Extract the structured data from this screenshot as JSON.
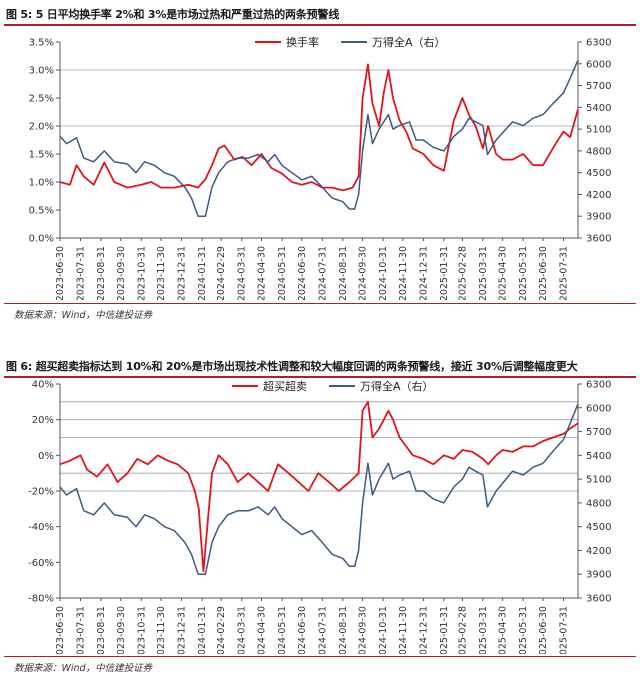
{
  "figures": [
    {
      "title": "图 5: 5 日平均换手率 2%和 3%是市场过热和严重过热的两条预警线",
      "source": "数据来源：Wind，中信建投证券"
    },
    {
      "title": "图 6: 超买超卖指标达到 10%和 20%是市场出现技术性调整和较大幅度回调的两条预警线，接近 30%后调整幅度更大",
      "source": "数据来源：Wind，中信建投证券"
    }
  ],
  "colors": {
    "red": "#e0151d",
    "blue": "#3d5a80",
    "axis": "#555555",
    "refline": "#9aa0a6",
    "rule": "#b01f24"
  },
  "x_ticks": [
    "2023-06-30",
    "2023-07-31",
    "2023-08-31",
    "2023-09-30",
    "2023-10-31",
    "2023-11-30",
    "2023-12-31",
    "2024-01-31",
    "2024-02-29",
    "2024-03-31",
    "2024-04-30",
    "2024-05-31",
    "2024-06-30",
    "2024-07-31",
    "2024-08-31",
    "2024-09-30",
    "2024-10-31",
    "2024-11-30",
    "2024-12-31",
    "2025-01-31",
    "2025-02-28",
    "2025-03-31",
    "2025-04-30",
    "2025-05-31",
    "2025-06-30",
    "2025-07-31"
  ],
  "chart_data": [
    {
      "type": "line",
      "x_start": "2023-06-30",
      "x_end": "2025-08-22",
      "y_left": {
        "ticks": [
          "0.0%",
          "0.5%",
          "1.0%",
          "1.5%",
          "2.0%",
          "2.5%",
          "3.0%",
          "3.5%"
        ],
        "lim": [
          0,
          3.5
        ]
      },
      "y_right": {
        "ticks": [
          "3600",
          "3900",
          "4200",
          "4500",
          "4800",
          "5100",
          "5400",
          "5700",
          "6000",
          "6300"
        ],
        "lim": [
          3600,
          6300
        ]
      },
      "reference_lines": [
        2.0,
        3.0
      ],
      "series": [
        {
          "name": "换手率",
          "axis": "left",
          "color": "red",
          "x": [
            "2023-06-30",
            "2023-07-15",
            "2023-07-25",
            "2023-08-05",
            "2023-08-20",
            "2023-09-05",
            "2023-09-20",
            "2023-10-10",
            "2023-10-31",
            "2023-11-15",
            "2023-11-30",
            "2023-12-20",
            "2024-01-10",
            "2024-01-25",
            "2024-02-05",
            "2024-02-15",
            "2024-02-25",
            "2024-03-05",
            "2024-03-20",
            "2024-04-01",
            "2024-04-15",
            "2024-04-30",
            "2024-05-15",
            "2024-05-31",
            "2024-06-15",
            "2024-06-30",
            "2024-07-15",
            "2024-07-31",
            "2024-08-15",
            "2024-08-31",
            "2024-09-15",
            "2024-09-24",
            "2024-09-30",
            "2024-10-08",
            "2024-10-15",
            "2024-10-25",
            "2024-11-01",
            "2024-11-08",
            "2024-11-15",
            "2024-11-25",
            "2024-12-05",
            "2024-12-15",
            "2024-12-31",
            "2025-01-15",
            "2025-01-31",
            "2025-02-15",
            "2025-02-28",
            "2025-03-10",
            "2025-03-20",
            "2025-03-31",
            "2025-04-08",
            "2025-04-20",
            "2025-04-30",
            "2025-05-15",
            "2025-05-31",
            "2025-06-15",
            "2025-06-30",
            "2025-07-10",
            "2025-07-20",
            "2025-07-31",
            "2025-08-10",
            "2025-08-22"
          ],
          "y": [
            1.0,
            0.95,
            1.3,
            1.1,
            0.95,
            1.35,
            1.0,
            0.9,
            0.95,
            1.0,
            0.9,
            0.9,
            0.95,
            0.9,
            1.05,
            1.3,
            1.6,
            1.65,
            1.4,
            1.45,
            1.3,
            1.5,
            1.25,
            1.15,
            1.0,
            0.95,
            1.0,
            0.9,
            0.9,
            0.85,
            0.9,
            1.1,
            2.5,
            3.1,
            2.4,
            2.0,
            2.6,
            3.0,
            2.5,
            2.1,
            1.9,
            1.6,
            1.5,
            1.3,
            1.2,
            2.1,
            2.5,
            2.2,
            2.0,
            1.6,
            2.0,
            1.5,
            1.4,
            1.4,
            1.5,
            1.3,
            1.3,
            1.5,
            1.7,
            1.9,
            1.8,
            2.3
          ]
        },
        {
          "name": "万得全A（右）",
          "axis": "right",
          "color": "blue",
          "x": [
            "2023-06-30",
            "2023-07-10",
            "2023-07-25",
            "2023-08-05",
            "2023-08-20",
            "2023-09-05",
            "2023-09-20",
            "2023-10-10",
            "2023-10-23",
            "2023-11-05",
            "2023-11-20",
            "2023-12-05",
            "2023-12-20",
            "2024-01-05",
            "2024-01-15",
            "2024-01-25",
            "2024-02-05",
            "2024-02-15",
            "2024-02-25",
            "2024-03-10",
            "2024-03-25",
            "2024-04-10",
            "2024-04-25",
            "2024-05-10",
            "2024-05-20",
            "2024-05-31",
            "2024-06-15",
            "2024-06-30",
            "2024-07-15",
            "2024-07-31",
            "2024-08-15",
            "2024-08-31",
            "2024-09-10",
            "2024-09-18",
            "2024-09-24",
            "2024-09-30",
            "2024-10-08",
            "2024-10-15",
            "2024-10-25",
            "2024-11-08",
            "2024-11-15",
            "2024-11-25",
            "2024-12-10",
            "2024-12-20",
            "2024-12-31",
            "2025-01-15",
            "2025-01-31",
            "2025-02-15",
            "2025-02-28",
            "2025-03-10",
            "2025-03-20",
            "2025-03-31",
            "2025-04-07",
            "2025-04-20",
            "2025-04-30",
            "2025-05-15",
            "2025-05-31",
            "2025-06-15",
            "2025-06-30",
            "2025-07-15",
            "2025-07-31",
            "2025-08-10",
            "2025-08-22"
          ],
          "y": [
            5000,
            4900,
            4980,
            4700,
            4650,
            4800,
            4650,
            4620,
            4500,
            4650,
            4600,
            4500,
            4450,
            4300,
            4150,
            3900,
            3900,
            4300,
            4500,
            4650,
            4700,
            4700,
            4750,
            4650,
            4750,
            4600,
            4500,
            4400,
            4450,
            4300,
            4150,
            4100,
            4000,
            4000,
            4200,
            4800,
            5300,
            4900,
            5100,
            5300,
            5100,
            5150,
            5200,
            4950,
            4950,
            4850,
            4800,
            5000,
            5100,
            5250,
            5200,
            5150,
            4750,
            4950,
            5050,
            5200,
            5150,
            5250,
            5300,
            5450,
            5600,
            5800,
            6050
          ]
        }
      ]
    },
    {
      "type": "line",
      "x_start": "2023-06-30",
      "x_end": "2025-08-22",
      "y_left": {
        "ticks": [
          "-80%",
          "-60%",
          "-40%",
          "-20%",
          "0%",
          "20%",
          "40%"
        ],
        "lim": [
          -80,
          40
        ]
      },
      "y_right": {
        "ticks": [
          "3600",
          "3900",
          "4200",
          "4500",
          "4800",
          "5100",
          "5400",
          "5700",
          "6000",
          "6300"
        ],
        "lim": [
          3600,
          6300
        ]
      },
      "reference_lines": [
        30,
        20,
        10,
        -10,
        -20
      ],
      "series": [
        {
          "name": "超买超卖",
          "axis": "left",
          "color": "red",
          "x": [
            "2023-06-30",
            "2023-07-15",
            "2023-07-31",
            "2023-08-10",
            "2023-08-25",
            "2023-09-10",
            "2023-09-25",
            "2023-10-10",
            "2023-10-25",
            "2023-11-10",
            "2023-11-25",
            "2023-12-10",
            "2023-12-25",
            "2024-01-10",
            "2024-01-20",
            "2024-01-26",
            "2024-02-02",
            "2024-02-08",
            "2024-02-15",
            "2024-02-25",
            "2024-03-10",
            "2024-03-25",
            "2024-04-10",
            "2024-04-25",
            "2024-05-10",
            "2024-05-25",
            "2024-06-10",
            "2024-06-25",
            "2024-07-10",
            "2024-07-25",
            "2024-08-10",
            "2024-08-25",
            "2024-09-10",
            "2024-09-24",
            "2024-09-30",
            "2024-10-08",
            "2024-10-15",
            "2024-10-25",
            "2024-11-08",
            "2024-11-15",
            "2024-11-25",
            "2024-12-05",
            "2024-12-15",
            "2024-12-31",
            "2025-01-15",
            "2025-01-31",
            "2025-02-15",
            "2025-02-28",
            "2025-03-15",
            "2025-03-31",
            "2025-04-08",
            "2025-04-20",
            "2025-04-30",
            "2025-05-15",
            "2025-05-31",
            "2025-06-15",
            "2025-06-30",
            "2025-07-15",
            "2025-07-31",
            "2025-08-10",
            "2025-08-22"
          ],
          "y": [
            -5,
            -3,
            0,
            -8,
            -12,
            -5,
            -15,
            -10,
            -2,
            -5,
            0,
            -3,
            -5,
            -10,
            -20,
            -30,
            -65,
            -40,
            -10,
            0,
            -5,
            -15,
            -10,
            -15,
            -20,
            -5,
            -10,
            -15,
            -20,
            -10,
            -15,
            -20,
            -15,
            -10,
            25,
            30,
            10,
            15,
            25,
            20,
            10,
            5,
            0,
            -2,
            -5,
            0,
            -2,
            3,
            2,
            -2,
            -5,
            0,
            3,
            2,
            5,
            5,
            8,
            10,
            12,
            15,
            18
          ]
        },
        {
          "name": "万得全A（右）",
          "axis": "right",
          "color": "blue",
          "x": [
            "2023-06-30",
            "2023-07-10",
            "2023-07-25",
            "2023-08-05",
            "2023-08-20",
            "2023-09-05",
            "2023-09-20",
            "2023-10-10",
            "2023-10-23",
            "2023-11-05",
            "2023-11-20",
            "2023-12-05",
            "2023-12-20",
            "2024-01-05",
            "2024-01-15",
            "2024-01-25",
            "2024-02-05",
            "2024-02-15",
            "2024-02-25",
            "2024-03-10",
            "2024-03-25",
            "2024-04-10",
            "2024-04-25",
            "2024-05-10",
            "2024-05-20",
            "2024-05-31",
            "2024-06-15",
            "2024-06-30",
            "2024-07-15",
            "2024-07-31",
            "2024-08-15",
            "2024-08-31",
            "2024-09-10",
            "2024-09-18",
            "2024-09-24",
            "2024-09-30",
            "2024-10-08",
            "2024-10-15",
            "2024-10-25",
            "2024-11-08",
            "2024-11-15",
            "2024-11-25",
            "2024-12-10",
            "2024-12-20",
            "2024-12-31",
            "2025-01-15",
            "2025-01-31",
            "2025-02-15",
            "2025-02-28",
            "2025-03-10",
            "2025-03-20",
            "2025-03-31",
            "2025-04-07",
            "2025-04-20",
            "2025-04-30",
            "2025-05-15",
            "2025-05-31",
            "2025-06-15",
            "2025-06-30",
            "2025-07-15",
            "2025-07-31",
            "2025-08-10",
            "2025-08-22"
          ],
          "y": [
            5000,
            4900,
            4980,
            4700,
            4650,
            4800,
            4650,
            4620,
            4500,
            4650,
            4600,
            4500,
            4450,
            4300,
            4150,
            3900,
            3900,
            4300,
            4500,
            4650,
            4700,
            4700,
            4750,
            4650,
            4750,
            4600,
            4500,
            4400,
            4450,
            4300,
            4150,
            4100,
            4000,
            4000,
            4200,
            4800,
            5300,
            4900,
            5100,
            5300,
            5100,
            5150,
            5200,
            4950,
            4950,
            4850,
            4800,
            5000,
            5100,
            5250,
            5200,
            5150,
            4750,
            4950,
            5050,
            5200,
            5150,
            5250,
            5300,
            5450,
            5600,
            5800,
            6050
          ]
        }
      ]
    }
  ]
}
